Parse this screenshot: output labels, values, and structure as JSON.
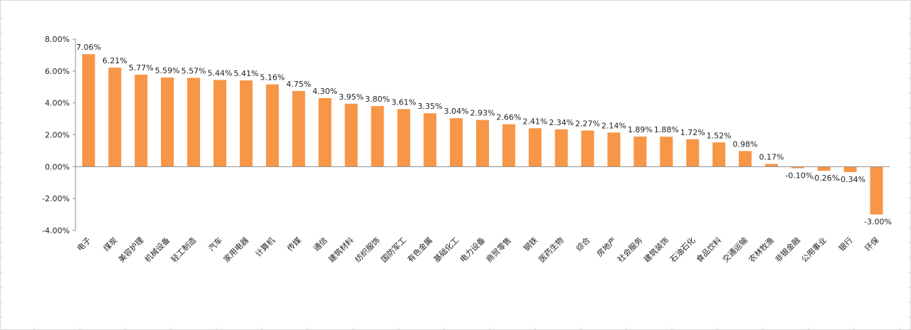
{
  "chart_data": {
    "type": "bar",
    "title": "",
    "xlabel": "",
    "ylabel": "",
    "ylim": [
      -4,
      8
    ],
    "yticks": [
      8,
      6,
      4,
      2,
      0,
      -2,
      -4
    ],
    "ytick_labels": [
      "8.00%",
      "6.00%",
      "4.00%",
      "2.00%",
      "0.00%",
      "-2.00%",
      "-4.00%"
    ],
    "bar_color": "#F79646",
    "grid": false,
    "legend": "none",
    "categories": [
      "电子",
      "煤炭",
      "美容护理",
      "机械设备",
      "轻工制造",
      "汽车",
      "家用电器",
      "计算机",
      "传媒",
      "通信",
      "建筑材料",
      "纺织服饰",
      "国防军工",
      "有色金属",
      "基础化工",
      "电力设备",
      "商贸零售",
      "钢铁",
      "医药生物",
      "综合",
      "房地产",
      "社会服务",
      "建筑装饰",
      "石油石化",
      "食品饮料",
      "交通运输",
      "农林牧渔",
      "非银金融",
      "公用事业",
      "银行",
      "环保"
    ],
    "values": [
      7.06,
      6.21,
      5.77,
      5.59,
      5.57,
      5.44,
      5.41,
      5.16,
      4.75,
      4.3,
      3.95,
      3.8,
      3.61,
      3.35,
      3.04,
      2.93,
      2.66,
      2.41,
      2.34,
      2.27,
      2.14,
      1.89,
      1.88,
      1.72,
      1.52,
      0.98,
      0.17,
      -0.1,
      -0.26,
      -0.34,
      -3.0
    ],
    "value_labels": [
      "7.06%",
      "6.21%",
      "5.77%",
      "5.59%",
      "5.57%",
      "5.44%",
      "5.41%",
      "5.16%",
      "4.75%",
      "4.30%",
      "3.95%",
      "3.80%",
      "3.61%",
      "3.35%",
      "3.04%",
      "2.93%",
      "2.66%",
      "2.41%",
      "2.34%",
      "2.27%",
      "2.14%",
      "1.89%",
      "1.88%",
      "1.72%",
      "1.52%",
      "0.98%",
      "0.17%",
      "-0.10%",
      "-0.26%",
      "-0.34%",
      "-3.00%"
    ]
  }
}
